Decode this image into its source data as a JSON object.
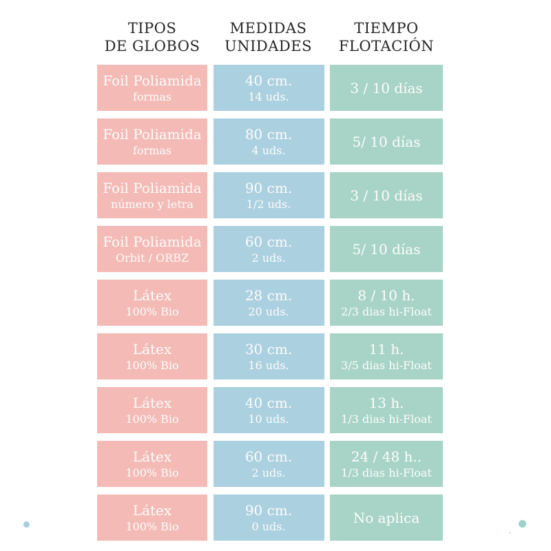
{
  "colors": {
    "background": "#ffffff",
    "pink": "#f3bab6",
    "blue": "#abd0e0",
    "green": "#a7d4c6",
    "header_text": "#262626",
    "cell_text": "#fdfdfb",
    "dot_blue": "#a9cede",
    "dot_teal": "#9fd0c9"
  },
  "headers": [
    {
      "line1": "TIPOS",
      "line2": "DE GLOBOS"
    },
    {
      "line1": "MEDIDAS",
      "line2": "UNIDADES"
    },
    {
      "line1": "TIEMPO",
      "line2": "FLOTACIÓN"
    }
  ],
  "rows": [
    {
      "tipo": {
        "line1": "Foil Poliamida",
        "line2": "formas"
      },
      "medida": {
        "line1": "40 cm.",
        "line2": "14 uds."
      },
      "tiempo": {
        "line1": "3 / 10 días",
        "line2": ""
      }
    },
    {
      "tipo": {
        "line1": "Foil Poliamida",
        "line2": "formas"
      },
      "medida": {
        "line1": "80 cm.",
        "line2": "4 uds."
      },
      "tiempo": {
        "line1": "5/ 10 días",
        "line2": ""
      }
    },
    {
      "tipo": {
        "line1": "Foil Poliamida",
        "line2": "número y letra"
      },
      "medida": {
        "line1": "90 cm.",
        "line2": "1/2 uds."
      },
      "tiempo": {
        "line1": "3 / 10 días",
        "line2": ""
      }
    },
    {
      "tipo": {
        "line1": "Foil Poliamida",
        "line2": "Orbit / ORBZ"
      },
      "medida": {
        "line1": "60 cm.",
        "line2": "2 uds."
      },
      "tiempo": {
        "line1": "5/ 10 días",
        "line2": ""
      }
    },
    {
      "tipo": {
        "line1": "Látex",
        "line2": "100% Bio"
      },
      "medida": {
        "line1": "28 cm.",
        "line2": "20 uds."
      },
      "tiempo": {
        "line1": "8 / 10 h.",
        "line2": "2/3 dias hi-Float"
      }
    },
    {
      "tipo": {
        "line1": "Látex",
        "line2": "100% Bio"
      },
      "medida": {
        "line1": "30 cm.",
        "line2": "16 uds."
      },
      "tiempo": {
        "line1": "11 h.",
        "line2": "3/5 dias hi-Float"
      }
    },
    {
      "tipo": {
        "line1": "Látex",
        "line2": "100% Bio"
      },
      "medida": {
        "line1": "40 cm.",
        "line2": "10 uds."
      },
      "tiempo": {
        "line1": "13 h.",
        "line2": "1/3 dias hi-Float"
      }
    },
    {
      "tipo": {
        "line1": "Látex",
        "line2": "100% Bio"
      },
      "medida": {
        "line1": "60 cm.",
        "line2": "2 uds."
      },
      "tiempo": {
        "line1": "24 / 48 h..",
        "line2": "1/3 dias hi-Float"
      }
    },
    {
      "tipo": {
        "line1": "Látex",
        "line2": "100% Bio"
      },
      "medida": {
        "line1": "90 cm.",
        "line2": "0 uds."
      },
      "tiempo": {
        "line1": "No aplica",
        "line2": ""
      }
    }
  ],
  "chart_data": {
    "type": "table",
    "title": "",
    "columns": [
      "TIPOS DE GLOBOS",
      "MEDIDAS UNIDADES",
      "TIEMPO FLOTACIÓN"
    ],
    "rows": [
      [
        "Foil Poliamida — formas",
        "40 cm. — 14 uds.",
        "3 / 10 días"
      ],
      [
        "Foil Poliamida — formas",
        "80 cm. — 4 uds.",
        "5/ 10 días"
      ],
      [
        "Foil Poliamida — número y letra",
        "90 cm. — 1/2 uds.",
        "3 / 10 días"
      ],
      [
        "Foil Poliamida — Orbit / ORBZ",
        "60 cm. — 2 uds.",
        "5/ 10 días"
      ],
      [
        "Látex — 100% Bio",
        "28 cm. — 20 uds.",
        "8 / 10 h. — 2/3 dias hi-Float"
      ],
      [
        "Látex — 100% Bio",
        "30 cm. — 16 uds.",
        "11 h. — 3/5 dias hi-Float"
      ],
      [
        "Látex — 100% Bio",
        "40 cm. — 10 uds.",
        "13 h. — 1/3 dias hi-Float"
      ],
      [
        "Látex — 100% Bio",
        "60 cm. — 2 uds.",
        "24 / 48 h.. — 1/3 dias hi-Float"
      ],
      [
        "Látex — 100% Bio",
        "90 cm. — 0 uds.",
        "No aplica"
      ]
    ],
    "layout": {
      "grid": false,
      "column_colors": [
        "#f3bab6",
        "#abd0e0",
        "#a7d4c6"
      ]
    }
  }
}
